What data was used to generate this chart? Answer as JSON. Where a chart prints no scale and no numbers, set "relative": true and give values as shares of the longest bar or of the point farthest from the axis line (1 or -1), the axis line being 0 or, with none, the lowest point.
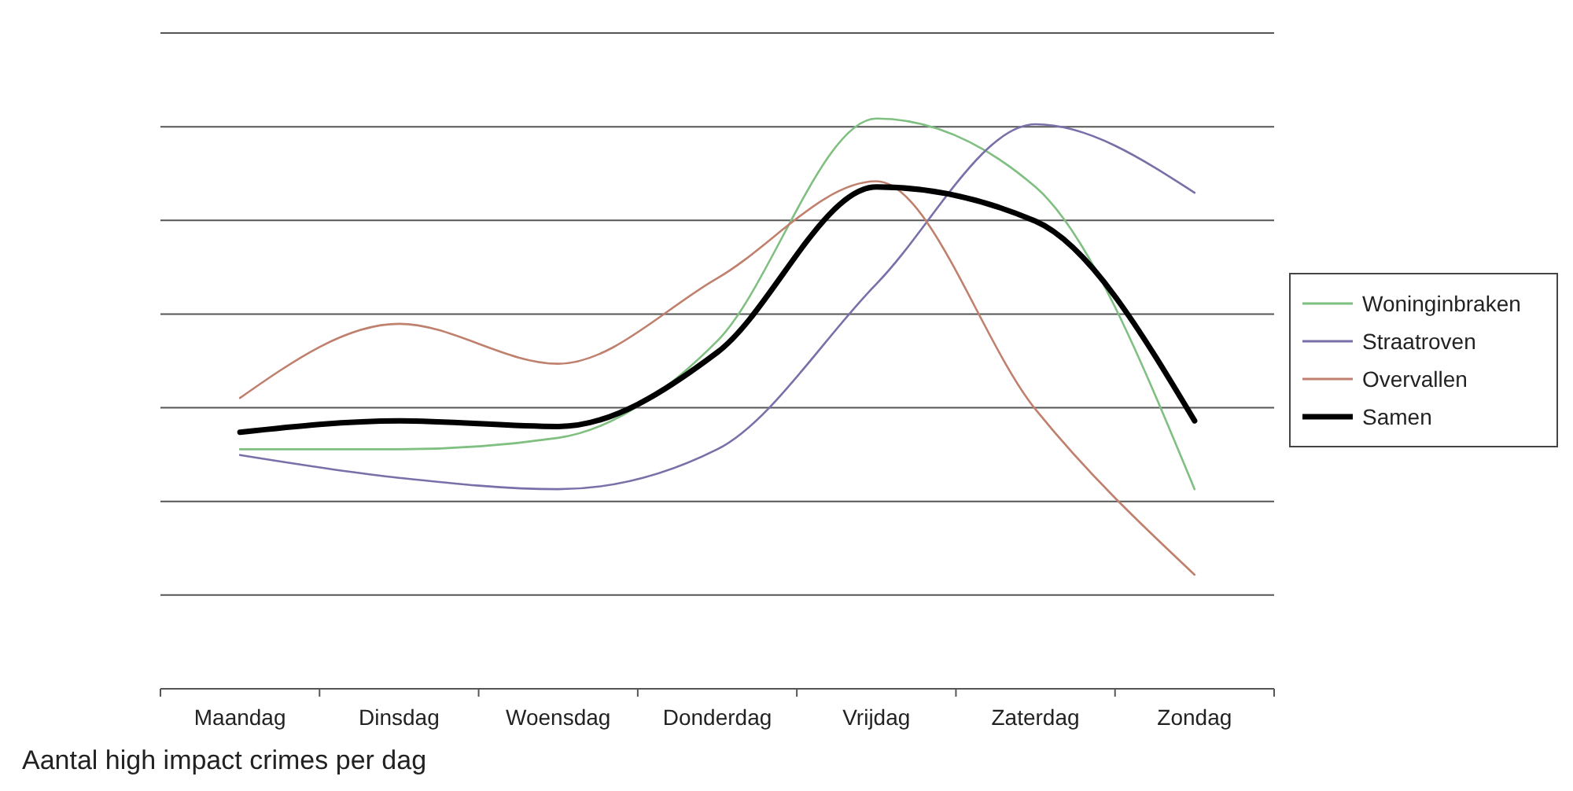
{
  "chart_data": {
    "type": "line",
    "relative": true,
    "grid": "y",
    "legend": "right",
    "marker": "none",
    "line_style": "solid",
    "categories": [
      "Maandag",
      "Dinsdag",
      "Woensdag",
      "Donderdag",
      "Vrijdag",
      "Zaterdag",
      "Zondag"
    ],
    "series": [
      {
        "name": "Woninginbraken",
        "color": "#7fbf80",
        "values": [
          0.42,
          0.42,
          0.44,
          0.61,
          1,
          0.88,
          0.35
        ]
      },
      {
        "name": "Straatroven",
        "color": "#7870a8",
        "values": [
          0.41,
          0.37,
          0.35,
          0.42,
          0.71,
          0.99,
          0.87
        ]
      },
      {
        "name": "Overvallen",
        "color": "#c0806e",
        "values": [
          0.51,
          0.64,
          0.57,
          0.72,
          0.89,
          0.49,
          0.2
        ]
      },
      {
        "name": "Samen",
        "color": "#000000",
        "values": [
          0.45,
          0.47,
          0.46,
          0.59,
          0.88,
          0.82,
          0.47
        ]
      }
    ],
    "annotations": [
      "Aantal high impact crimes per dag"
    ]
  }
}
